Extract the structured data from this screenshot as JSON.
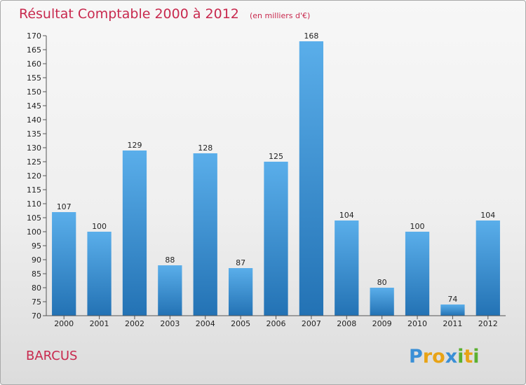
{
  "chart_data": {
    "type": "bar",
    "title": "Résultat Comptable 2000 à 2012",
    "subtitle": "(en milliers d'€)",
    "categories": [
      "2000",
      "2001",
      "2002",
      "2003",
      "2004",
      "2005",
      "2006",
      "2007",
      "2008",
      "2009",
      "2010",
      "2011",
      "2012"
    ],
    "values": [
      107,
      100,
      129,
      88,
      128,
      87,
      125,
      168,
      104,
      80,
      100,
      74,
      104
    ],
    "ylim": [
      70,
      170
    ],
    "ytick_step": 5,
    "xlabel": "",
    "ylabel": "",
    "grid": false,
    "legend": "none"
  },
  "footer": {
    "commune": "BARCUS",
    "brand": "Proxiti"
  },
  "colors": {
    "title": "#c8294e",
    "bar_light": "#5aaeea",
    "bar_dark": "#2372b4",
    "axis": "#555555",
    "logo": [
      "#3a8fd6",
      "#e8a316",
      "#e8a316",
      "#3a8fd6",
      "#5bb030",
      "#e8a316",
      "#5bb030"
    ]
  }
}
